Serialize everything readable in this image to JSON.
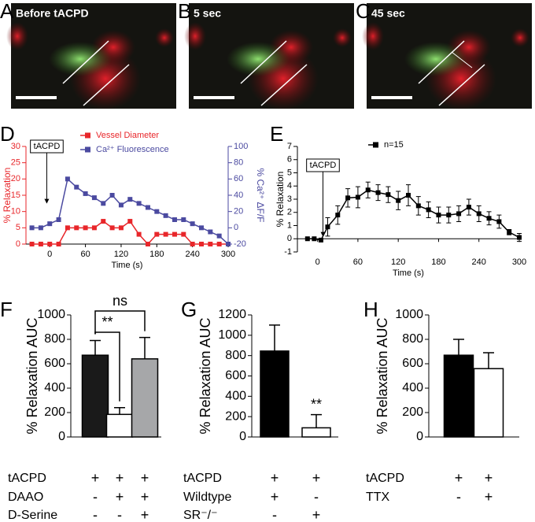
{
  "images": [
    {
      "letter": "A",
      "label": "Before tACPD"
    },
    {
      "letter": "B",
      "label": "5 sec"
    },
    {
      "letter": "C",
      "label": "45 sec"
    }
  ],
  "chart_data": [
    {
      "type": "line",
      "letter": "D",
      "xlabel": "Time (s)",
      "ylabel": "% Relaxation",
      "y2label": "% Ca²⁺ ΔF/F",
      "x": [
        -30,
        -15,
        0,
        15,
        30,
        45,
        60,
        75,
        90,
        105,
        120,
        135,
        150,
        165,
        180,
        195,
        210,
        225,
        240,
        255,
        270,
        285,
        300
      ],
      "xlim": [
        -40,
        300
      ],
      "xticks": [
        0,
        60,
        120,
        180,
        240,
        300
      ],
      "ylim": [
        0,
        30
      ],
      "yticks": [
        0,
        5,
        10,
        15,
        20,
        25,
        30
      ],
      "y2lim": [
        -20,
        100
      ],
      "y2ticks": [
        -20,
        0,
        20,
        40,
        60,
        80,
        100
      ],
      "annotation": {
        "text": "tACPD",
        "x": -5
      },
      "series": [
        {
          "name": "Vessel Diameter",
          "color": "#e8262a",
          "values": [
            0,
            0,
            0,
            0,
            5,
            5,
            5,
            5,
            7,
            5,
            5,
            7,
            3,
            0,
            3,
            3,
            3,
            3,
            0,
            0,
            0,
            0,
            0
          ]
        },
        {
          "name": "Ca²⁺ Fluorescence",
          "color": "#4b4aa0",
          "axis": "y2",
          "values": [
            0,
            0,
            5,
            10,
            60,
            50,
            42,
            37,
            30,
            40,
            28,
            35,
            30,
            25,
            20,
            15,
            10,
            10,
            5,
            0,
            -5,
            -10,
            -20
          ]
        }
      ]
    },
    {
      "type": "line",
      "letter": "E",
      "xlabel": "Time (s)",
      "ylabel": "% Relaxation",
      "x": [
        -15,
        -5,
        5,
        15,
        30,
        45,
        60,
        75,
        90,
        105,
        120,
        135,
        150,
        165,
        180,
        195,
        210,
        225,
        240,
        255,
        270,
        285,
        300
      ],
      "xlim": [
        -30,
        300
      ],
      "xticks": [
        0,
        60,
        120,
        180,
        240,
        300
      ],
      "ylim": [
        -1,
        7
      ],
      "yticks": [
        -1,
        0,
        1,
        2,
        3,
        4,
        5,
        6,
        7
      ],
      "annotation": {
        "text": "tACPD",
        "x": 8
      },
      "series": [
        {
          "name": "n=15",
          "color": "#000000",
          "values": [
            0,
            0,
            -0.1,
            0.9,
            1.8,
            3.1,
            3.15,
            3.7,
            3.5,
            3.35,
            2.9,
            3.3,
            2.5,
            2.2,
            1.8,
            1.8,
            1.9,
            2.4,
            1.9,
            1.55,
            1.3,
            0.5,
            0.1
          ],
          "errors": [
            0,
            0,
            0,
            0.7,
            0.7,
            0.7,
            0.8,
            0.6,
            0.6,
            0.6,
            0.7,
            0.8,
            0.7,
            0.6,
            0.6,
            0.6,
            0.6,
            0.6,
            0.6,
            0.5,
            0.5,
            0.2,
            0.3
          ]
        }
      ]
    },
    {
      "type": "bar",
      "letter": "F",
      "ylabel": "% Relaxation AUC",
      "ylim": [
        0,
        1000
      ],
      "yticks": [
        0,
        200,
        400,
        600,
        800,
        1000
      ],
      "values": [
        670,
        185,
        640
      ],
      "errors": [
        120,
        55,
        175
      ],
      "colors": [
        "#1a1a1a",
        "#ffffff",
        "#a6a7a9"
      ],
      "brackets": [
        {
          "text": "**",
          "bars": [
            0,
            1
          ]
        },
        {
          "text": "ns",
          "bars": [
            0,
            2
          ]
        }
      ],
      "conditions": [
        {
          "label": "tACPD",
          "signs": [
            "+",
            "+",
            "+"
          ]
        },
        {
          "label": "DAAO",
          "signs": [
            "-",
            "+",
            "+"
          ]
        },
        {
          "label": "D-Serine",
          "signs": [
            "-",
            "-",
            "+"
          ]
        }
      ]
    },
    {
      "type": "bar",
      "letter": "G",
      "ylabel": "% Relaxation AUC",
      "ylim": [
        0,
        1200
      ],
      "yticks": [
        0,
        200,
        400,
        600,
        800,
        1000,
        1200
      ],
      "values": [
        845,
        90
      ],
      "errors": [
        255,
        130
      ],
      "colors": [
        "#000000",
        "#ffffff"
      ],
      "brackets": [
        {
          "text": "**",
          "bars": [
            1
          ]
        }
      ],
      "conditions": [
        {
          "label": "tACPD",
          "signs": [
            "+",
            "+"
          ]
        },
        {
          "label": "Wildtype",
          "signs": [
            "+",
            "-"
          ]
        },
        {
          "label": "SR⁻/⁻",
          "signs": [
            "-",
            "+"
          ]
        }
      ]
    },
    {
      "type": "bar",
      "letter": "H",
      "ylabel": "% Relaxation AUC",
      "ylim": [
        0,
        1000
      ],
      "yticks": [
        0,
        200,
        400,
        600,
        800,
        1000
      ],
      "values": [
        670,
        560
      ],
      "errors": [
        130,
        130
      ],
      "colors": [
        "#000000",
        "#ffffff"
      ],
      "conditions": [
        {
          "label": "tACPD",
          "signs": [
            "+",
            "+"
          ]
        },
        {
          "label": "TTX",
          "signs": [
            "-",
            "+"
          ]
        }
      ]
    }
  ]
}
